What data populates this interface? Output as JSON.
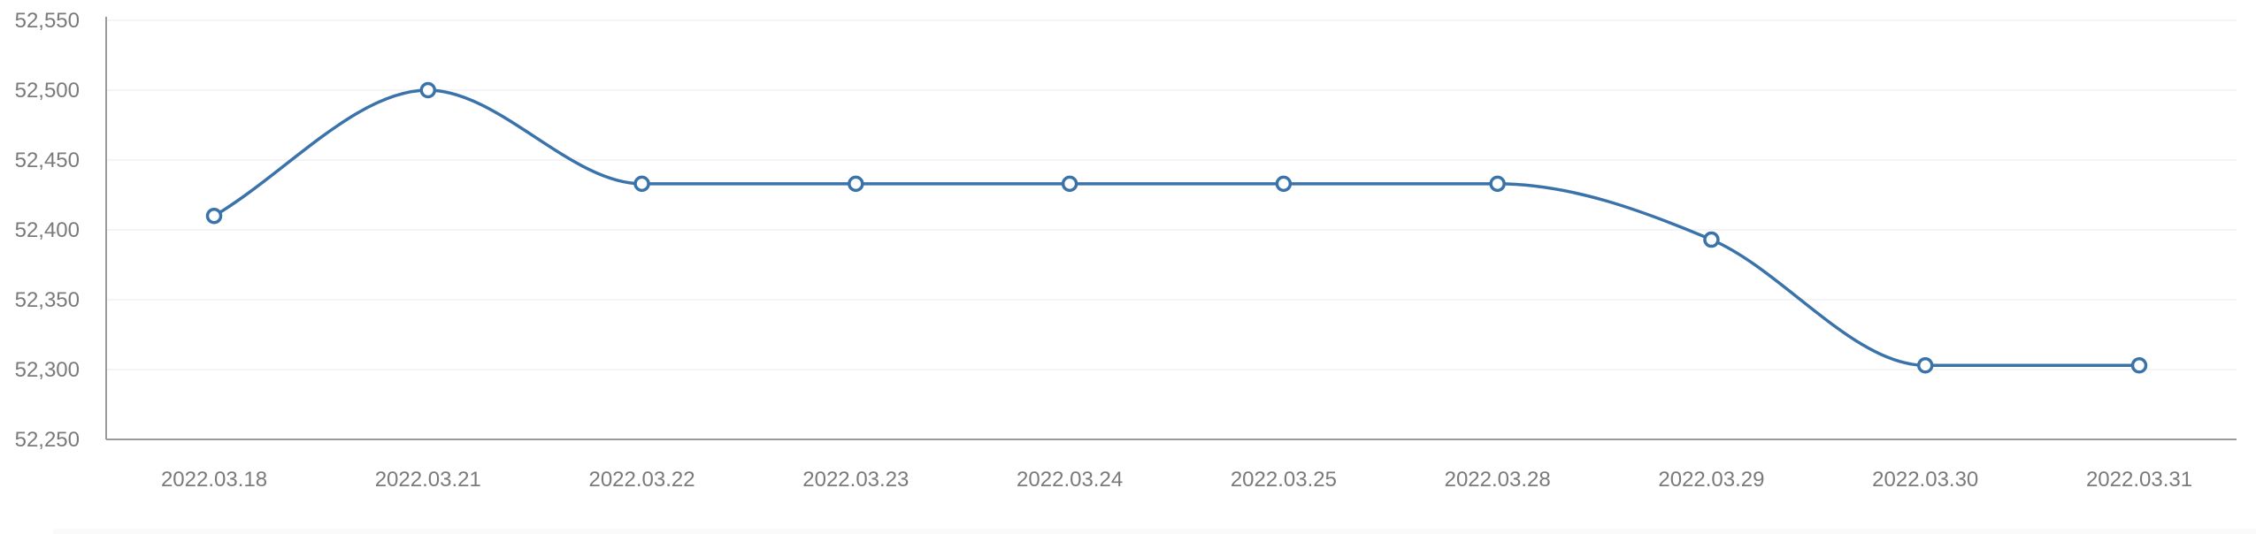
{
  "chart_data": {
    "type": "line",
    "title": "",
    "xlabel": "",
    "ylabel": "",
    "categories": [
      "2022.03.18",
      "2022.03.21",
      "2022.03.22",
      "2022.03.23",
      "2022.03.24",
      "2022.03.25",
      "2022.03.28",
      "2022.03.29",
      "2022.03.30",
      "2022.03.31"
    ],
    "series": [
      {
        "values": [
          52410,
          52500,
          52433,
          52433,
          52433,
          52433,
          52433,
          52393,
          52303,
          52303
        ],
        "color": "#3a72aa"
      }
    ],
    "ylim": [
      52250,
      52550
    ],
    "yticks": [
      52250,
      52300,
      52350,
      52400,
      52450,
      52500,
      52550
    ],
    "ytick_labels": [
      "52,250",
      "52,300",
      "52,350",
      "52,400",
      "52,450",
      "52,500",
      "52,550"
    ],
    "grid": true,
    "smooth": true,
    "marker": "hollow-circle",
    "legend": "none"
  }
}
